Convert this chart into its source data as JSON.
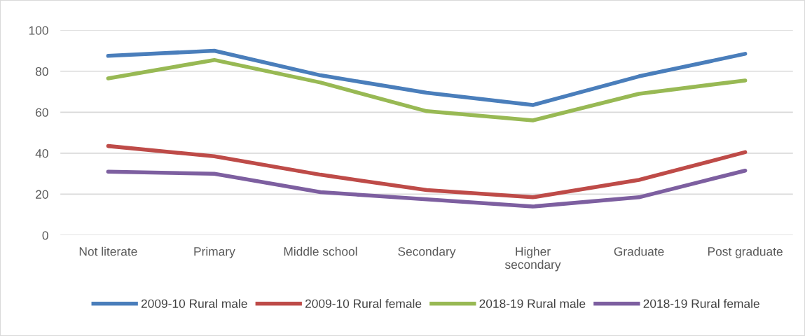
{
  "chart_data": {
    "type": "line",
    "categories": [
      "Not literate",
      "Primary",
      "Middle school",
      "Secondary",
      "Higher\nsecondary",
      "Graduate",
      "Post graduate"
    ],
    "series": [
      {
        "name": "2009-10 Rural male",
        "color": "#4a7ebb",
        "values": [
          87.5,
          90,
          78,
          69.5,
          63.5,
          77.5,
          88.5
        ]
      },
      {
        "name": "2009-10 Rural female",
        "color": "#be4b48",
        "values": [
          43.5,
          38.5,
          29.5,
          22,
          18.5,
          27,
          40.5
        ]
      },
      {
        "name": "2018-19 Rural male",
        "color": "#98b954",
        "values": [
          76.5,
          85.5,
          74.5,
          60.5,
          56,
          69,
          75.5
        ]
      },
      {
        "name": "2018-19 Rural female",
        "color": "#7d5fa0",
        "values": [
          31,
          30,
          21,
          17.5,
          14,
          18.5,
          31.5
        ]
      }
    ],
    "ylim": [
      0,
      100
    ],
    "yticks": [
      0,
      20,
      40,
      60,
      80,
      100
    ],
    "grid": "y",
    "legend": "bottom",
    "marker": "none",
    "line_style": "solid"
  }
}
